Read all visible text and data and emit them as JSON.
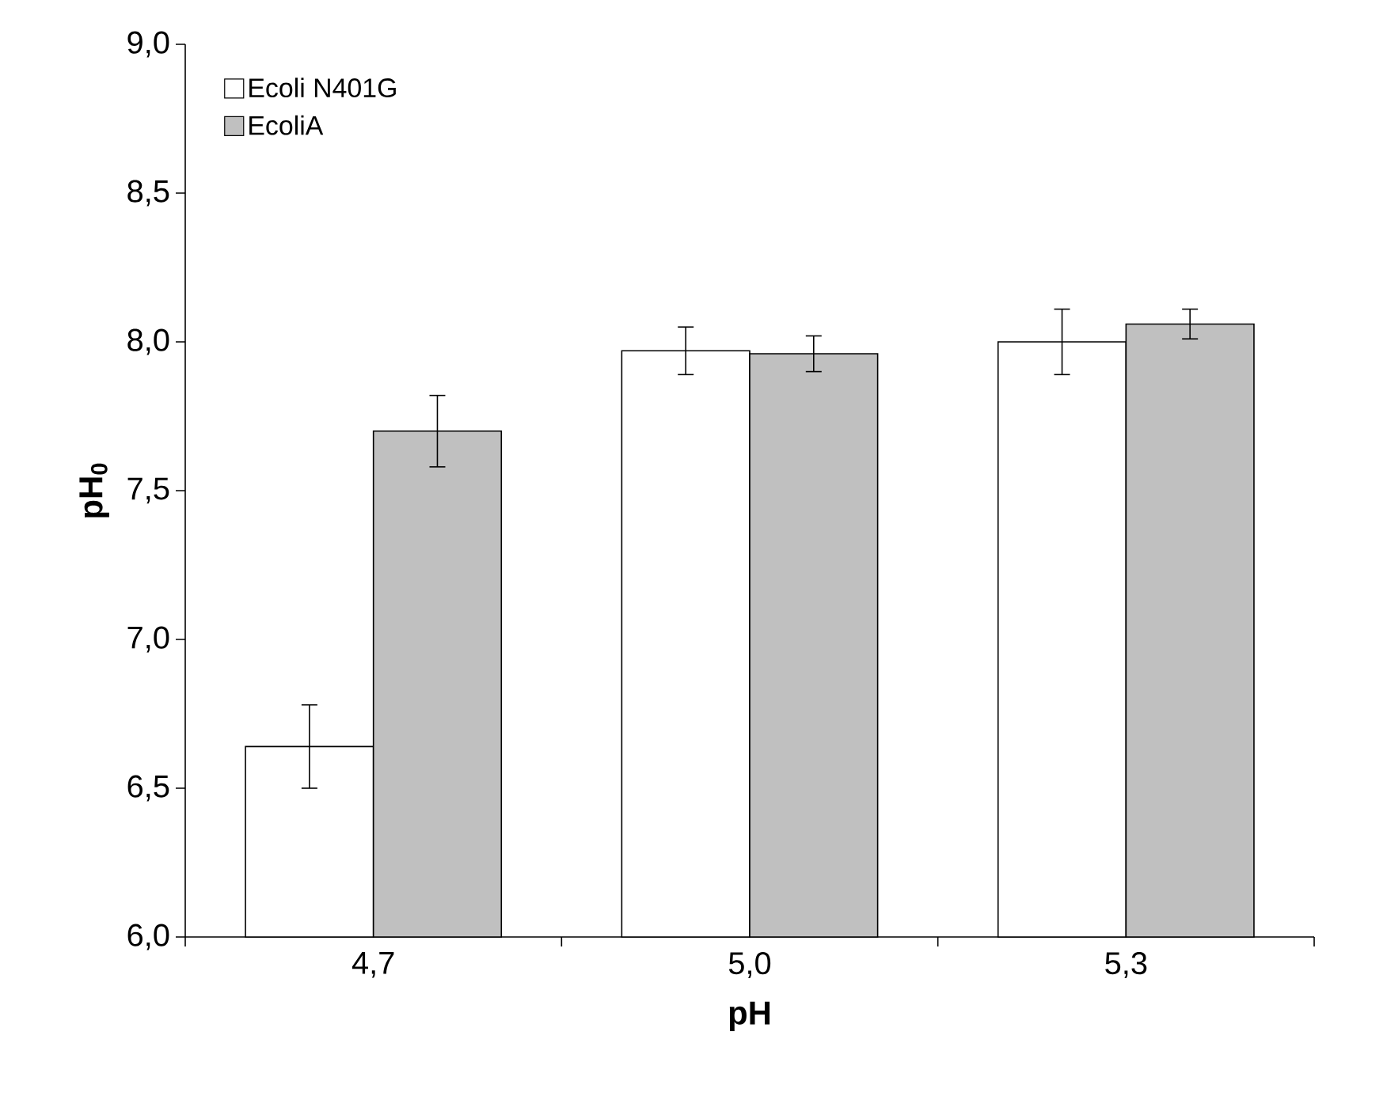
{
  "chart_data": {
    "type": "bar",
    "xlabel": "pH",
    "ylabel": "pH$_{0}$",
    "categories": [
      "4,7",
      "5,0",
      "5,3"
    ],
    "series": [
      {
        "name": "Ecoli N401G",
        "color": "#ffffff",
        "values": [
          6.64,
          7.97,
          8.0
        ],
        "errors": [
          0.14,
          0.08,
          0.11
        ]
      },
      {
        "name": "EcoliA",
        "color": "#c0c0c0",
        "values": [
          7.7,
          7.96,
          8.06
        ],
        "errors": [
          0.12,
          0.06,
          0.05
        ]
      }
    ],
    "ylim": [
      6.0,
      9.0
    ],
    "yticks": [
      {
        "value": 6.0,
        "label": "6,0"
      },
      {
        "value": 6.5,
        "label": "6,5"
      },
      {
        "value": 7.0,
        "label": "7,0"
      },
      {
        "value": 7.5,
        "label": "7,5"
      },
      {
        "value": 8.0,
        "label": "8,0"
      },
      {
        "value": 8.5,
        "label": "8,5"
      },
      {
        "value": 9.0,
        "label": "9,0"
      }
    ],
    "grid": false,
    "legend": "top left"
  }
}
